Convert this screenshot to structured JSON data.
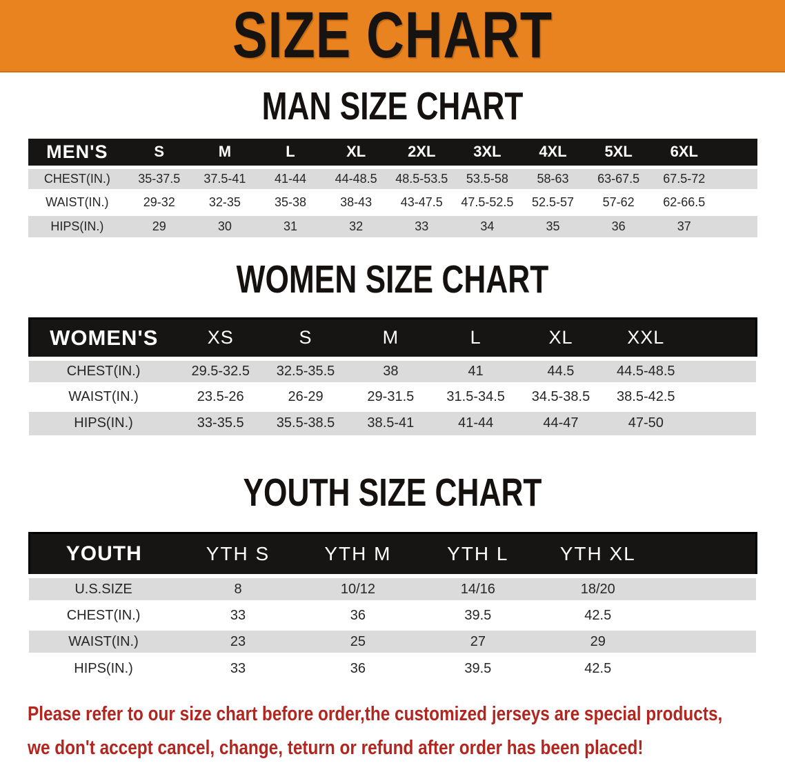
{
  "banner": {
    "title": "SIZE CHART"
  },
  "sections": [
    {
      "id": "men",
      "heading": "MAN SIZE CHART",
      "table": {
        "corner_label": "MEN'S",
        "columns": [
          "S",
          "M",
          "L",
          "XL",
          "2XL",
          "3XL",
          "4XL",
          "5XL",
          "6XL"
        ],
        "rows": [
          {
            "label": "CHEST(IN.)",
            "shaded": true,
            "values": [
              "35-37.5",
              "37.5-41",
              "41-44",
              "44-48.5",
              "48.5-53.5",
              "53.5-58",
              "58-63",
              "63-67.5",
              "67.5-72"
            ]
          },
          {
            "label": "WAIST(IN.)",
            "shaded": false,
            "values": [
              "29-32",
              "32-35",
              "35-38",
              "38-43",
              "43-47.5",
              "47.5-52.5",
              "52.5-57",
              "57-62",
              "62-66.5"
            ]
          },
          {
            "label": "HIPS(IN.)",
            "shaded": true,
            "values": [
              "29",
              "30",
              "31",
              "32",
              "33",
              "34",
              "35",
              "36",
              "37"
            ]
          }
        ]
      }
    },
    {
      "id": "women",
      "heading": "WOMEN SIZE CHART",
      "table": {
        "corner_label": "WOMEN'S",
        "columns": [
          "XS",
          "S",
          "M",
          "L",
          "XL",
          "XXL"
        ],
        "rows": [
          {
            "label": "CHEST(IN.)",
            "shaded": true,
            "values": [
              "29.5-32.5",
              "32.5-35.5",
              "38",
              "41",
              "44.5",
              "44.5-48.5"
            ]
          },
          {
            "label": "WAIST(IN.)",
            "shaded": false,
            "values": [
              "23.5-26",
              "26-29",
              "29-31.5",
              "31.5-34.5",
              "34.5-38.5",
              "38.5-42.5"
            ]
          },
          {
            "label": "HIPS(IN.)",
            "shaded": true,
            "values": [
              "33-35.5",
              "35.5-38.5",
              "38.5-41",
              "41-44",
              "44-47",
              "47-50"
            ]
          }
        ]
      }
    },
    {
      "id": "youth",
      "heading": "YOUTH SIZE CHART",
      "table": {
        "corner_label": "YOUTH",
        "columns": [
          "YTH S",
          "YTH M",
          "YTH L",
          "YTH XL"
        ],
        "rows": [
          {
            "label": "U.S.SIZE",
            "shaded": true,
            "values": [
              "8",
              "10/12",
              "14/16",
              "18/20"
            ]
          },
          {
            "label": "CHEST(IN.)",
            "shaded": false,
            "values": [
              "33",
              "36",
              "39.5",
              "42.5"
            ]
          },
          {
            "label": "WAIST(IN.)",
            "shaded": true,
            "values": [
              "23",
              "25",
              "27",
              "29"
            ]
          },
          {
            "label": "HIPS(IN.)",
            "shaded": false,
            "values": [
              "33",
              "36",
              "39.5",
              "42.5"
            ]
          }
        ]
      }
    }
  ],
  "disclaimer": {
    "lines": [
      "Please refer to our size chart before order,the customized jerseys are special products,",
      "we don't accept cancel, change, teturn or refund after order has been placed!"
    ]
  },
  "colors": {
    "banner_orange": "#E8831F",
    "header_bar_black": "#171414",
    "shaded_row_gray": "#DBDBDB",
    "disclaimer_red": "#B2261F"
  }
}
